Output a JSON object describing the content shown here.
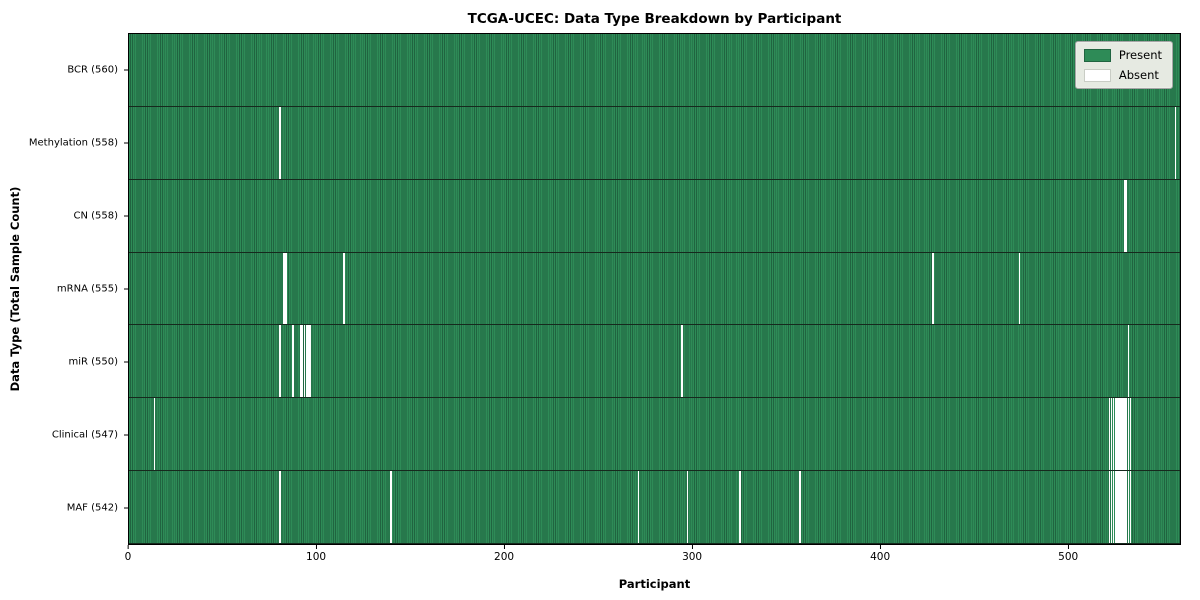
{
  "title": "TCGA-UCEC: Data Type Breakdown by Participant",
  "xlabel": "Participant",
  "ylabel": "Data Type (Total Sample Count)",
  "legend": {
    "present_label": "Present",
    "absent_label": "Absent"
  },
  "colors": {
    "present": "#2e8b57",
    "present_edge": "#206440",
    "absent": "#ffffff",
    "row_divider": "#16291d",
    "frame": "#000000",
    "legend_bg": "#e6eae2"
  },
  "chart_data": {
    "type": "heatmap",
    "title": "TCGA-UCEC: Data Type Breakdown by Participant",
    "xlabel": "Participant",
    "ylabel": "Data Type (Total Sample Count)",
    "x_range": [
      0,
      560
    ],
    "x_ticks": [
      0,
      100,
      200,
      300,
      400,
      500
    ],
    "grid": false,
    "legend_position": "upper right",
    "legend": [
      {
        "label": "Present",
        "color": "#2e8b57"
      },
      {
        "label": "Absent",
        "color": "#ffffff"
      }
    ],
    "rows": [
      {
        "name": "BCR",
        "label": "BCR (560)",
        "total": 560,
        "absent_participants": []
      },
      {
        "name": "Methylation",
        "label": "Methylation (558)",
        "total": 558,
        "absent_participants": [
          80,
          557
        ]
      },
      {
        "name": "CN",
        "label": "CN (558)",
        "total": 558,
        "absent_participants": [
          530,
          531
        ]
      },
      {
        "name": "mRNA",
        "label": "mRNA (555)",
        "total": 555,
        "absent_participants": [
          82,
          83,
          114,
          428,
          474
        ]
      },
      {
        "name": "miR",
        "label": "miR (550)",
        "total": 550,
        "absent_participants": [
          80,
          87,
          91,
          92,
          93,
          94,
          95,
          96,
          294,
          532
        ]
      },
      {
        "name": "Clinical",
        "label": "Clinical (547)",
        "total": 547,
        "absent_participants": [
          13,
          522,
          523,
          524,
          525,
          526,
          527,
          528,
          529,
          530,
          531,
          532,
          533
        ]
      },
      {
        "name": "MAF",
        "label": "MAF (542)",
        "total": 542,
        "absent_participants": [
          80,
          139,
          271,
          297,
          325,
          357,
          522,
          523,
          524,
          525,
          526,
          527,
          528,
          529,
          530,
          531,
          532,
          533
        ]
      }
    ]
  }
}
